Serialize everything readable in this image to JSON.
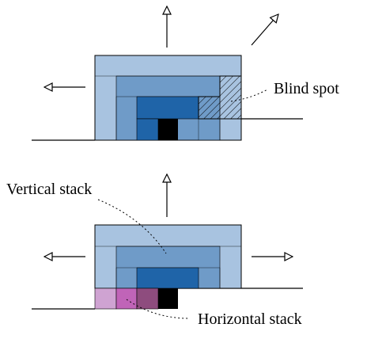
{
  "labels": {
    "blind_spot": "Blind spot",
    "vertical_stack": "Vertical stack",
    "horizontal_stack": "Horizontal stack"
  },
  "colors": {
    "outer_blue": "#a8c3e0",
    "mid_blue": "#6f9bc8",
    "inner_blue": "#1f64a8",
    "core_black": "#000000",
    "pink_light": "#cfa3d2",
    "pink_mid": "#c064b8",
    "pink_dark": "#8e4c7e",
    "hatch": "#000000"
  }
}
